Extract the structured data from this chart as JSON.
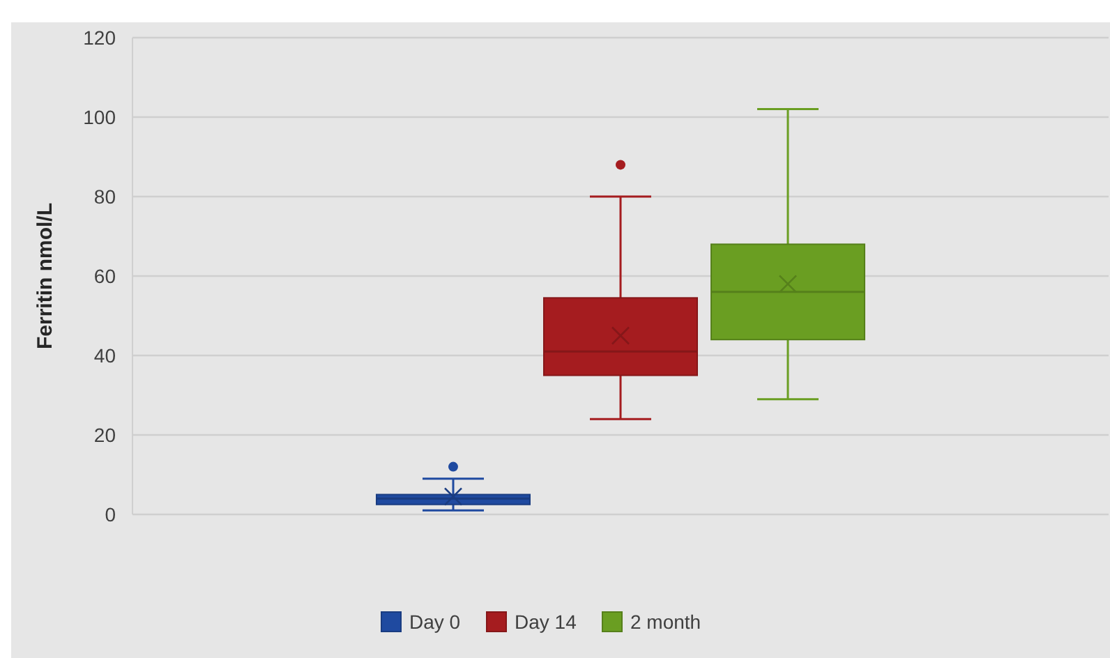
{
  "chart_data": {
    "type": "box",
    "ylabel": "Ferritin nmol/L",
    "categories": [
      null
    ],
    "ylim": [
      0,
      120
    ],
    "yticks": [
      0,
      20,
      40,
      60,
      80,
      100,
      120
    ],
    "grid": "y",
    "legend": "bottom",
    "tick_labels": "y",
    "series": [
      {
        "name": "Day 0",
        "color": "#1f4aa0",
        "boxes": [
          {
            "low": 1,
            "q1": 2.5,
            "median": 4,
            "q3": 5,
            "high": 9,
            "mean": 4.5,
            "outliers": [
              12
            ]
          }
        ]
      },
      {
        "name": "Day 14",
        "color": "#a51c1f",
        "boxes": [
          {
            "low": 24,
            "q1": 35,
            "median": 41,
            "q3": 54.5,
            "high": 80,
            "mean": 45,
            "outliers": [
              88
            ]
          }
        ]
      },
      {
        "name": "2 month",
        "color": "#6a9e22",
        "boxes": [
          {
            "low": 29,
            "q1": 44,
            "median": 56,
            "q3": 68,
            "high": 102,
            "mean": 58
          }
        ]
      }
    ]
  }
}
